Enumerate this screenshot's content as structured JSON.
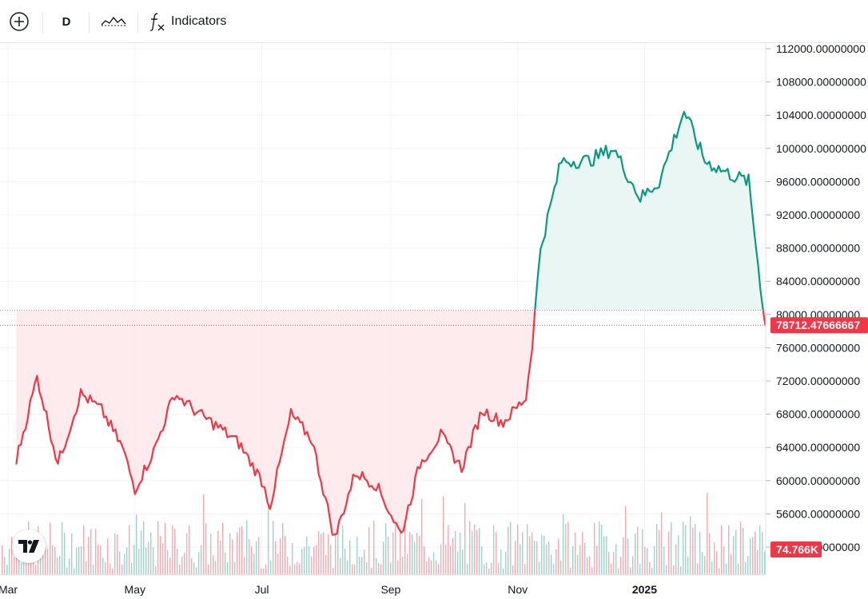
{
  "toolbar": {
    "add_symbol_icon": "plus-circle-icon",
    "interval": "D",
    "chart_style_icon": "line-chart-style-icon",
    "indicators_icon": "function-fx-icon",
    "indicators_label": "Indicators"
  },
  "colors": {
    "up": "#089981",
    "down": "#f23645",
    "up_fill": "#e6f4f1",
    "down_fill": "#fde7ea",
    "grid": "#f0f3fa",
    "volume_up": "#9fd3c9",
    "volume_down": "#f6a9b0"
  },
  "price_scale": {
    "ticks": [
      "112000.00000000",
      "108000.00000000",
      "104000.00000000",
      "100000.00000000",
      "96000.00000000",
      "92000.00000000",
      "88000.00000000",
      "84000.00000000",
      "80000.00000000",
      "76000.00000000",
      "72000.00000000",
      "68000.00000000",
      "64000.00000000",
      "60000.00000000",
      "56000.00000000",
      "52000.00000000"
    ],
    "last_price_label": "78712.47666667",
    "volume_label": "74.766K"
  },
  "time_scale": {
    "labels": [
      "Mar",
      "May",
      "Jul",
      "Sep",
      "Nov",
      "2025"
    ]
  },
  "chart_data": {
    "type": "area",
    "baseline": 80500,
    "ylim": [
      50000,
      113000
    ],
    "last_price": 78712.47666667,
    "x": [
      "2024-03-05",
      "2024-03-15",
      "2024-03-25",
      "2024-04-05",
      "2024-04-15",
      "2024-04-25",
      "2024-05-01",
      "2024-05-10",
      "2024-05-20",
      "2024-06-01",
      "2024-06-10",
      "2024-06-20",
      "2024-07-01",
      "2024-07-05",
      "2024-07-15",
      "2024-07-25",
      "2024-08-05",
      "2024-08-15",
      "2024-08-25",
      "2024-09-06",
      "2024-09-15",
      "2024-09-25",
      "2024-10-05",
      "2024-10-15",
      "2024-10-25",
      "2024-11-05",
      "2024-11-08",
      "2024-11-12",
      "2024-11-22",
      "2024-12-05",
      "2024-12-17",
      "2024-12-30",
      "2025-01-08",
      "2025-01-20",
      "2025-01-30",
      "2025-02-10",
      "2025-02-20",
      "2025-02-28"
    ],
    "values": [
      62500,
      72500,
      62000,
      70500,
      68500,
      64000,
      59000,
      63500,
      70500,
      68000,
      66500,
      64500,
      60000,
      57000,
      68000,
      65000,
      53000,
      61000,
      59500,
      53500,
      62000,
      65500,
      61500,
      68500,
      67000,
      70000,
      76500,
      88000,
      98500,
      98500,
      100000,
      94000,
      96000,
      104500,
      98500,
      97000,
      96000,
      78712
    ],
    "volume": {
      "type": "bar",
      "title": "Volume",
      "ylim_hint": "relative"
    }
  }
}
